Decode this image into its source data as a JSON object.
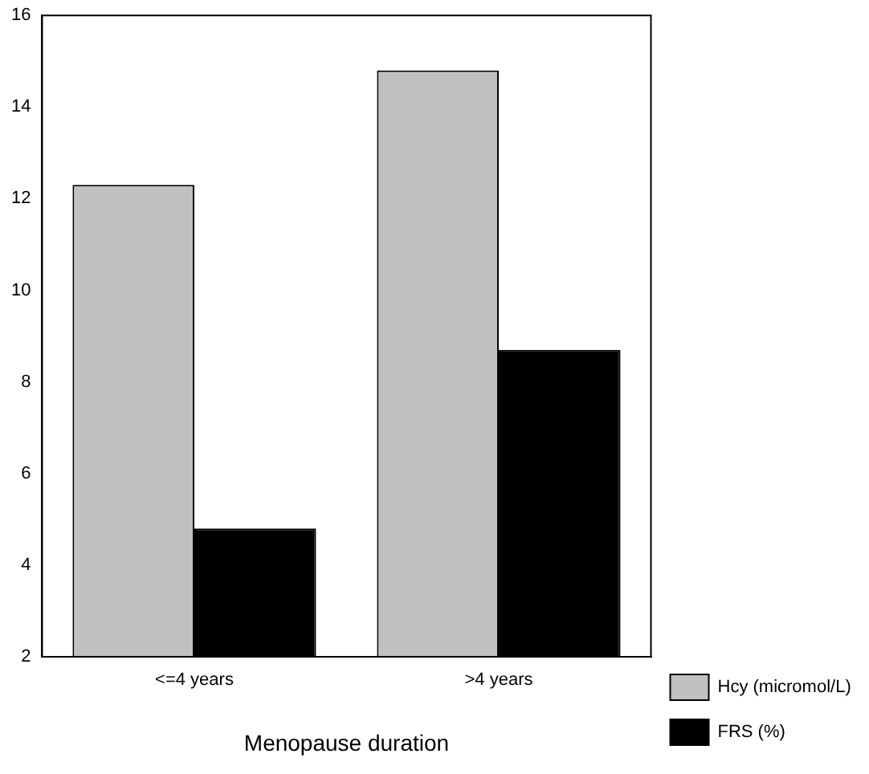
{
  "chart_data": {
    "type": "bar",
    "xlabel": "Menopause duration",
    "categories": [
      "<=4 years",
      ">4 years"
    ],
    "series": [
      {
        "name": "Hcy (micromol/L)",
        "color": "#c0c0c0",
        "values": [
          12.3,
          14.8
        ]
      },
      {
        "name": "FRS (%)",
        "color": "#000000",
        "values": [
          4.8,
          8.7
        ]
      }
    ],
    "ylim": [
      2,
      16
    ],
    "yticks": [
      2,
      4,
      6,
      8,
      10,
      12,
      14,
      16
    ],
    "grid": false,
    "legend": "bottom right"
  }
}
